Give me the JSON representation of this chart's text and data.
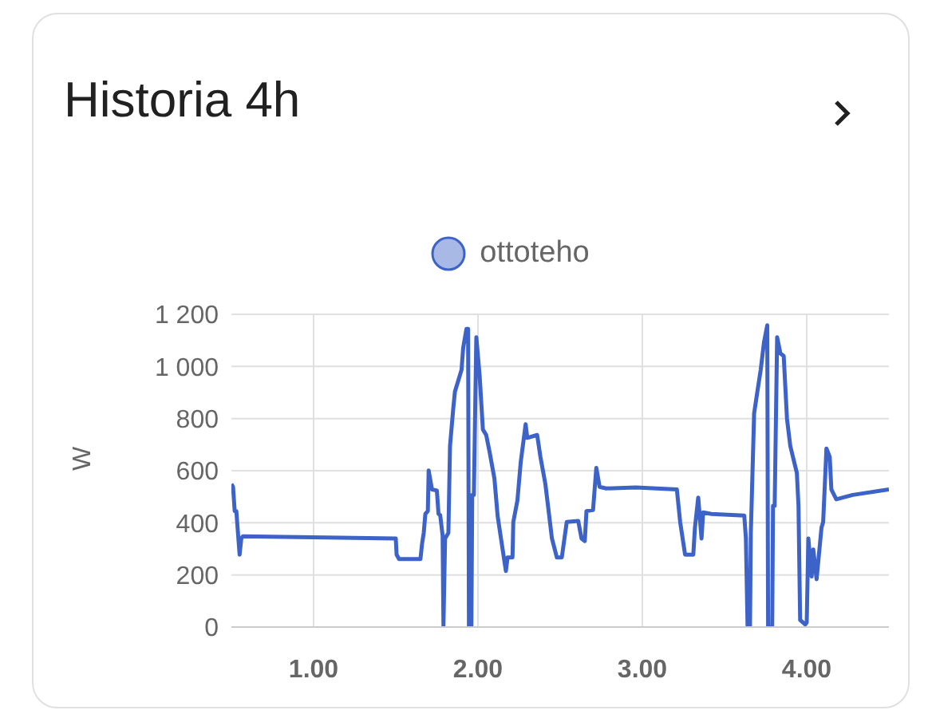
{
  "chart_data": {
    "type": "line",
    "title": "Historia 4h",
    "ylabel": "W",
    "legend": "top",
    "grid": true,
    "marker": "none",
    "line_style": "solid",
    "xlim": [
      0.5,
      4.5
    ],
    "xticks": [
      {
        "value": 1,
        "label": "1.00"
      },
      {
        "value": 2,
        "label": "2.00"
      },
      {
        "value": 3,
        "label": "3.00"
      },
      {
        "value": 4,
        "label": "4.00"
      }
    ],
    "ylim": [
      0,
      1200
    ],
    "yticks": [
      0,
      200,
      400,
      600,
      800,
      {
        "value": 1000,
        "label": "1 000"
      },
      {
        "value": 1200,
        "label": "1 200"
      }
    ],
    "series": [
      {
        "name": "ottoteho",
        "color": "#3d63c8",
        "x": [
          0.5,
          0.51,
          0.52,
          0.53,
          0.54,
          0.55,
          0.56,
          0.57,
          1.5,
          1.505,
          1.52,
          1.65,
          1.66,
          1.67,
          1.68,
          1.695,
          1.7,
          1.72,
          1.75,
          1.76,
          1.77,
          1.785,
          1.79,
          1.8,
          1.82,
          1.83,
          1.85,
          1.86,
          1.88,
          1.9,
          1.91,
          1.93,
          1.94,
          1.945,
          1.96,
          1.965,
          1.975,
          1.99,
          2.01,
          2.03,
          2.05,
          2.07,
          2.1,
          2.12,
          2.15,
          2.17,
          2.18,
          2.21,
          2.215,
          2.24,
          2.26,
          2.29,
          2.3,
          2.36,
          2.38,
          2.41,
          2.45,
          2.48,
          2.51,
          2.54,
          2.61,
          2.63,
          2.65,
          2.66,
          2.7,
          2.72,
          2.74,
          2.78,
          2.96,
          3.21,
          3.23,
          3.26,
          3.31,
          3.32,
          3.34,
          3.36,
          3.37,
          3.42,
          3.62,
          3.63,
          3.64,
          3.655,
          3.66,
          3.68,
          3.7,
          3.72,
          3.74,
          3.76,
          3.765,
          3.79,
          3.795,
          3.805,
          3.82,
          3.84,
          3.86,
          3.88,
          3.9,
          3.94,
          3.95,
          3.96,
          3.99,
          4.0,
          4.01,
          4.03,
          4.04,
          4.06,
          4.09,
          4.1,
          4.12,
          4.14,
          4.15,
          4.18,
          4.28,
          4.5
        ],
        "values": [
          549,
          538,
          445,
          445,
          361,
          278,
          340,
          348,
          340,
          278,
          261,
          261,
          320,
          361,
          434,
          445,
          601,
          528,
          524,
          434,
          430,
          351,
          6,
          340,
          361,
          695,
          841,
          904,
          945,
          987,
          1071,
          1144,
          1144,
          0,
          0,
          507,
          507,
          1112,
          966,
          758,
          737,
          674,
          570,
          424,
          298,
          215,
          267,
          267,
          403,
          486,
          632,
          778,
          726,
          737,
          653,
          549,
          340,
          267,
          267,
          403,
          407,
          340,
          330,
          445,
          449,
          611,
          538,
          532,
          536,
          528,
          403,
          278,
          278,
          382,
          497,
          340,
          440,
          434,
          428,
          340,
          6,
          6,
          361,
          820,
          904,
          987,
          1092,
          1158,
          0,
          0,
          465,
          465,
          1112,
          1050,
          1040,
          799,
          695,
          591,
          465,
          27,
          10,
          17,
          340,
          194,
          298,
          184,
          382,
          403,
          685,
          653,
          528,
          490,
          507,
          528
        ]
      }
    ]
  }
}
